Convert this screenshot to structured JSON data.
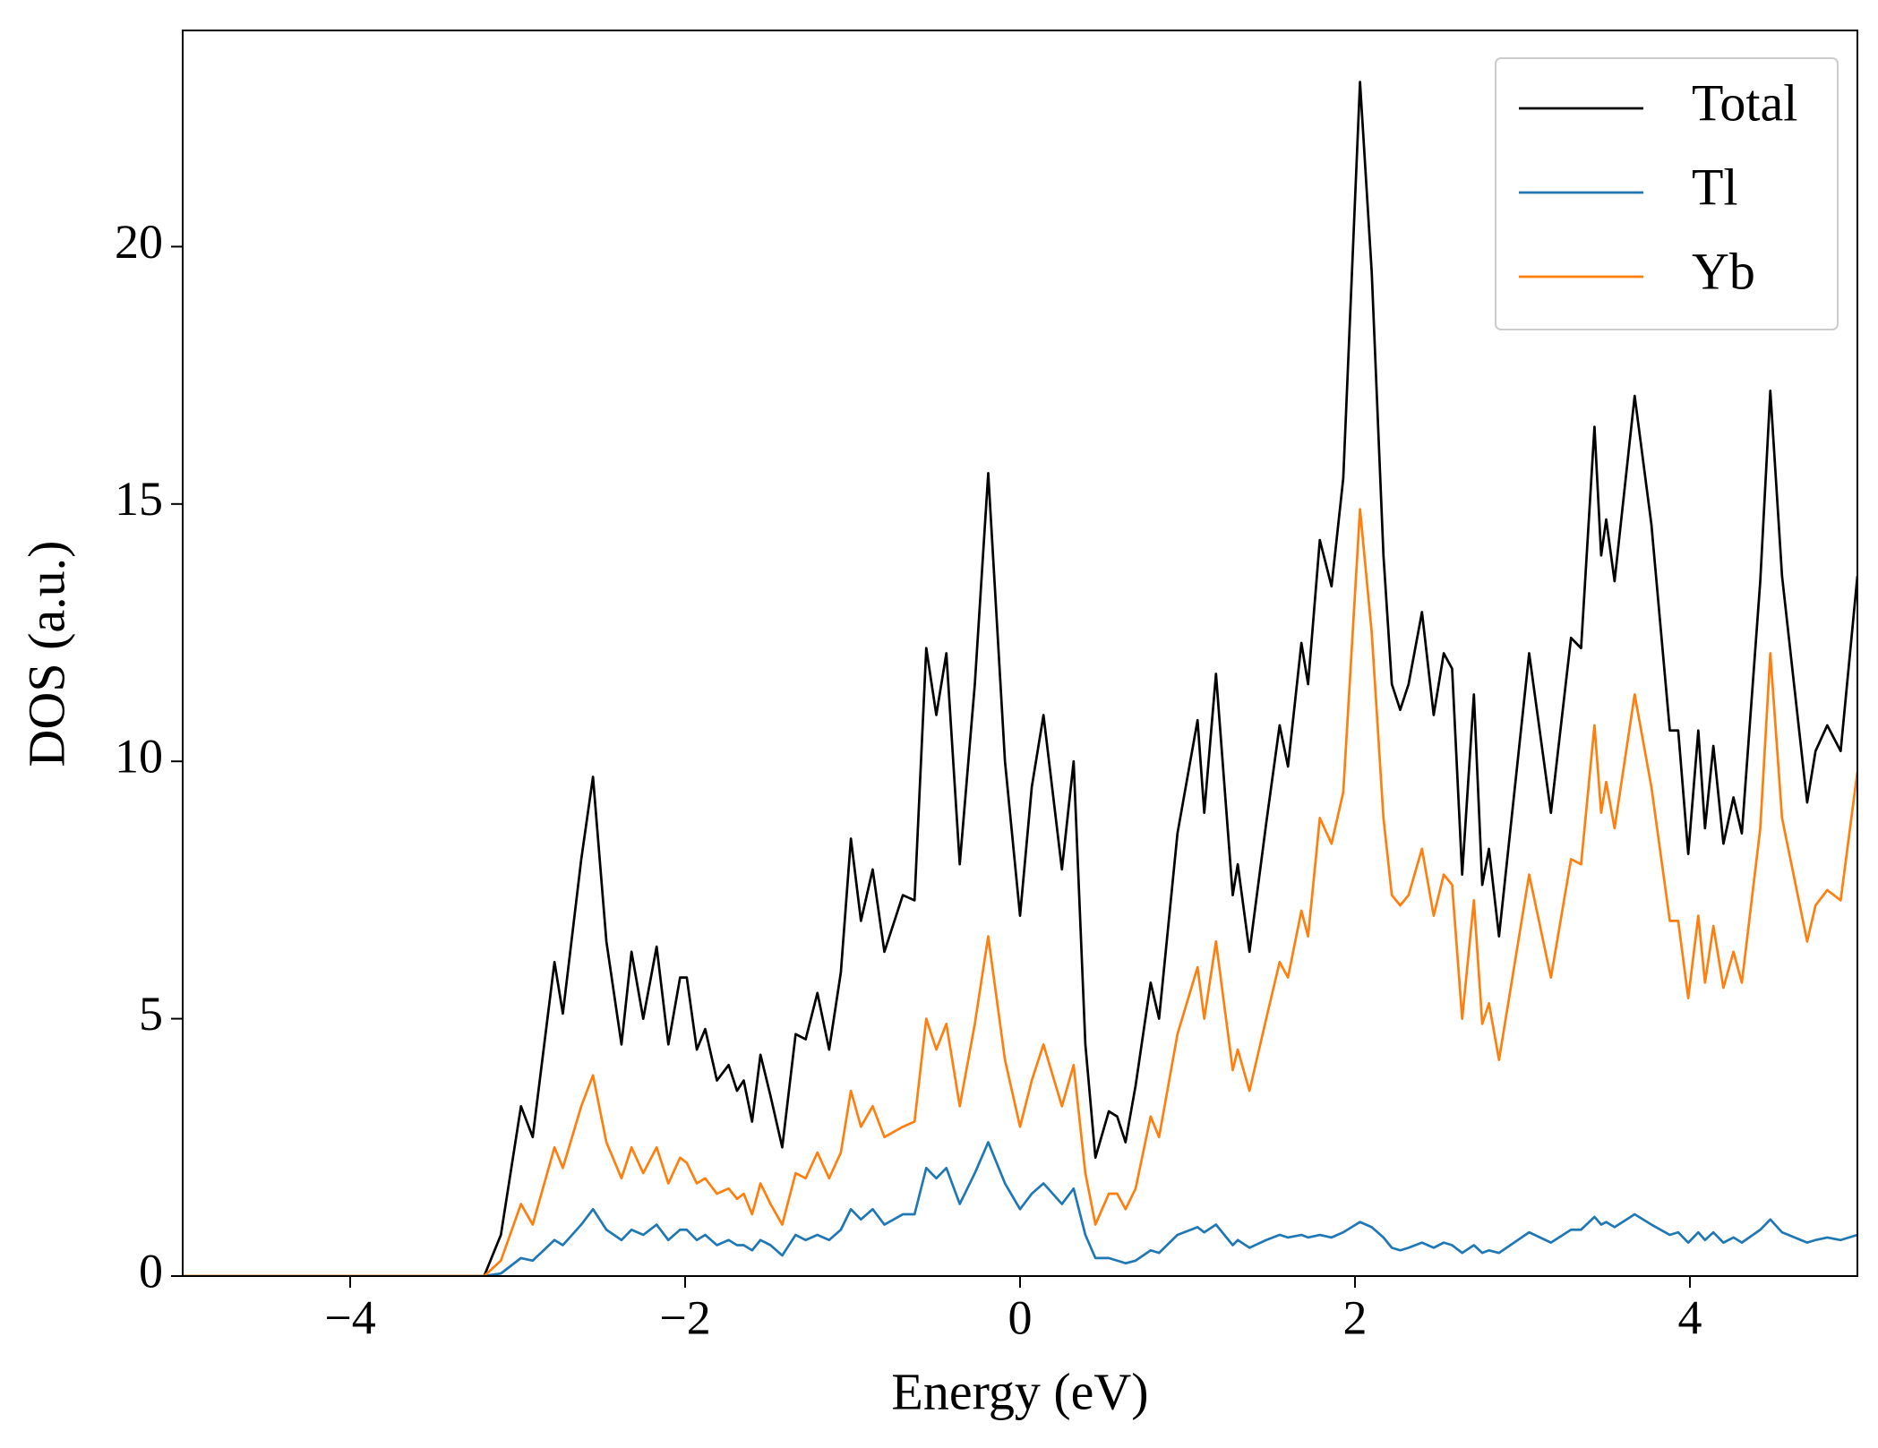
{
  "chart_data": {
    "type": "line",
    "xlabel": "Energy (eV)",
    "ylabel": "DOS (a.u.)",
    "x": [
      -5,
      -3.2,
      -3.1,
      -2.98,
      -2.91,
      -2.78,
      -2.73,
      -2.62,
      -2.55,
      -2.47,
      -2.38,
      -2.32,
      -2.25,
      -2.17,
      -2.1,
      -2.03,
      -1.99,
      -1.93,
      -1.88,
      -1.81,
      -1.74,
      -1.69,
      -1.65,
      -1.6,
      -1.55,
      -1.49,
      -1.42,
      -1.34,
      -1.28,
      -1.21,
      -1.14,
      -1.07,
      -1.01,
      -0.95,
      -0.88,
      -0.81,
      -0.7,
      -0.63,
      -0.56,
      -0.5,
      -0.44,
      -0.36,
      -0.27,
      -0.19,
      -0.09,
      0.0,
      0.07,
      0.14,
      0.25,
      0.32,
      0.39,
      0.45,
      0.53,
      0.58,
      0.63,
      0.69,
      0.78,
      0.83,
      0.94,
      1.06,
      1.1,
      1.17,
      1.27,
      1.3,
      1.37,
      1.47,
      1.55,
      1.6,
      1.68,
      1.72,
      1.79,
      1.86,
      1.93,
      2.03,
      2.1,
      2.17,
      2.22,
      2.27,
      2.32,
      2.4,
      2.47,
      2.53,
      2.58,
      2.64,
      2.71,
      2.76,
      2.8,
      2.86,
      3.04,
      3.17,
      3.29,
      3.35,
      3.43,
      3.47,
      3.5,
      3.55,
      3.67,
      3.77,
      3.88,
      3.93,
      3.99,
      4.05,
      4.09,
      4.14,
      4.2,
      4.26,
      4.31,
      4.42,
      4.48,
      4.55,
      4.7,
      4.75,
      4.82,
      4.9,
      5.0
    ],
    "series": [
      {
        "name": "Total",
        "color": "#000000",
        "values": [
          0,
          0,
          0.8,
          3.3,
          2.7,
          6.1,
          5.1,
          8.1,
          9.7,
          6.5,
          4.5,
          6.3,
          5.0,
          6.4,
          4.5,
          5.8,
          5.8,
          4.4,
          4.8,
          3.8,
          4.1,
          3.6,
          3.8,
          3.0,
          4.3,
          3.5,
          2.5,
          4.7,
          4.6,
          5.5,
          4.4,
          5.9,
          8.5,
          6.9,
          7.9,
          6.3,
          7.4,
          7.3,
          12.2,
          10.9,
          12.1,
          8.0,
          11.5,
          15.6,
          10.0,
          7.0,
          9.5,
          10.9,
          7.9,
          10.0,
          4.5,
          2.3,
          3.2,
          3.1,
          2.6,
          3.7,
          5.7,
          5.0,
          8.6,
          10.8,
          9.0,
          11.7,
          7.4,
          8.0,
          6.3,
          8.8,
          10.7,
          9.9,
          12.3,
          11.5,
          14.3,
          13.4,
          15.5,
          23.2,
          19.5,
          14.0,
          11.5,
          11.0,
          11.5,
          12.9,
          10.9,
          12.1,
          11.8,
          7.8,
          11.3,
          7.6,
          8.3,
          6.6,
          12.1,
          9.0,
          12.4,
          12.2,
          16.5,
          14.0,
          14.7,
          13.5,
          17.1,
          14.6,
          10.6,
          10.6,
          8.2,
          10.6,
          8.7,
          10.3,
          8.4,
          9.3,
          8.6,
          13.5,
          17.2,
          13.6,
          9.2,
          10.2,
          10.7,
          10.2,
          13.6
        ]
      },
      {
        "name": "Tl",
        "color": "#1f77b4",
        "values": [
          0,
          0,
          0.05,
          0.35,
          0.3,
          0.7,
          0.6,
          1.0,
          1.3,
          0.9,
          0.7,
          0.9,
          0.8,
          1.0,
          0.7,
          0.9,
          0.9,
          0.7,
          0.8,
          0.6,
          0.7,
          0.6,
          0.6,
          0.5,
          0.7,
          0.6,
          0.4,
          0.8,
          0.7,
          0.8,
          0.7,
          0.9,
          1.3,
          1.1,
          1.3,
          1.0,
          1.2,
          1.2,
          2.1,
          1.9,
          2.1,
          1.4,
          2.0,
          2.6,
          1.8,
          1.3,
          1.6,
          1.8,
          1.4,
          1.7,
          0.8,
          0.35,
          0.35,
          0.3,
          0.25,
          0.3,
          0.5,
          0.45,
          0.8,
          0.95,
          0.85,
          1.0,
          0.6,
          0.7,
          0.55,
          0.7,
          0.8,
          0.75,
          0.8,
          0.75,
          0.8,
          0.75,
          0.85,
          1.05,
          0.95,
          0.75,
          0.55,
          0.5,
          0.55,
          0.65,
          0.55,
          0.65,
          0.6,
          0.45,
          0.6,
          0.45,
          0.5,
          0.45,
          0.85,
          0.65,
          0.9,
          0.9,
          1.15,
          1.0,
          1.05,
          0.95,
          1.2,
          1.0,
          0.8,
          0.85,
          0.65,
          0.85,
          0.7,
          0.85,
          0.65,
          0.75,
          0.65,
          0.9,
          1.1,
          0.85,
          0.65,
          0.7,
          0.75,
          0.7,
          0.8
        ]
      },
      {
        "name": "Yb",
        "color": "#ff7f0e",
        "values": [
          0,
          0,
          0.3,
          1.4,
          1.0,
          2.5,
          2.1,
          3.3,
          3.9,
          2.6,
          1.9,
          2.5,
          2.0,
          2.5,
          1.8,
          2.3,
          2.2,
          1.8,
          1.9,
          1.6,
          1.7,
          1.5,
          1.6,
          1.2,
          1.8,
          1.4,
          1.0,
          2.0,
          1.9,
          2.4,
          1.9,
          2.4,
          3.6,
          2.9,
          3.3,
          2.7,
          2.9,
          3.0,
          5.0,
          4.4,
          4.9,
          3.3,
          4.9,
          6.6,
          4.2,
          2.9,
          3.8,
          4.5,
          3.3,
          4.1,
          2.0,
          1.0,
          1.6,
          1.6,
          1.3,
          1.7,
          3.1,
          2.7,
          4.7,
          6.0,
          5.0,
          6.5,
          4.0,
          4.4,
          3.6,
          5.0,
          6.1,
          5.8,
          7.1,
          6.6,
          8.9,
          8.4,
          9.4,
          14.9,
          12.5,
          8.9,
          7.4,
          7.2,
          7.4,
          8.3,
          7.0,
          7.8,
          7.6,
          5.0,
          7.3,
          4.9,
          5.3,
          4.2,
          7.8,
          5.8,
          8.1,
          8.0,
          10.7,
          9.0,
          9.6,
          8.7,
          11.3,
          9.5,
          6.9,
          6.9,
          5.4,
          7.0,
          5.7,
          6.8,
          5.6,
          6.3,
          5.7,
          8.7,
          12.1,
          8.9,
          6.5,
          7.2,
          7.5,
          7.3,
          9.8
        ]
      }
    ],
    "xlim": [
      -5,
      5
    ],
    "xticks": [
      {
        "value": -4,
        "label": "−4"
      },
      {
        "value": -2,
        "label": "−2"
      },
      0,
      2,
      4
    ],
    "ylim": [
      0,
      24.2
    ],
    "yticks": [
      0,
      5,
      10,
      15,
      20
    ],
    "grid": false,
    "legend": "upper right"
  }
}
